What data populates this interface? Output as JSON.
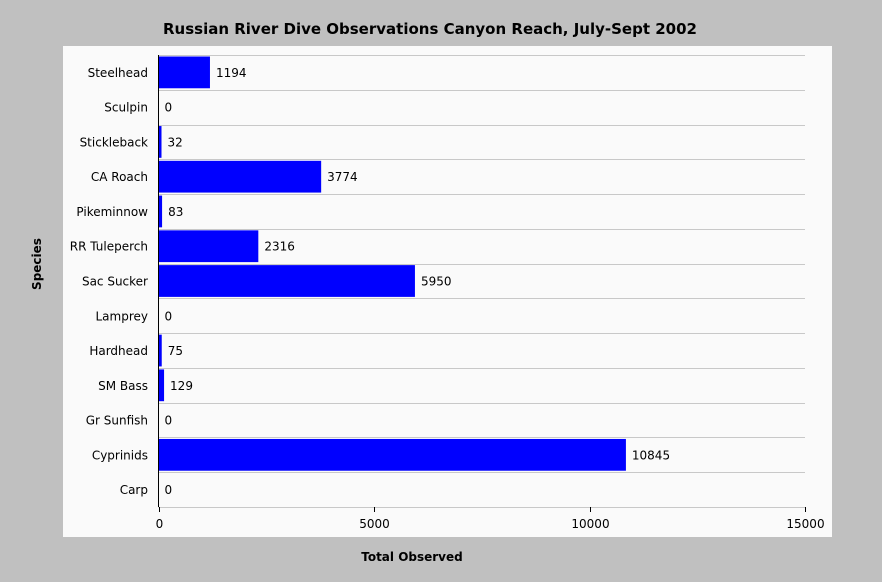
{
  "chart_data": {
    "type": "bar",
    "orientation": "horizontal",
    "title": "Russian River Dive Observations Canyon Reach, July-Sept 2002",
    "xlabel": "Total Observed",
    "ylabel": "Species",
    "categories": [
      "Steelhead",
      "Sculpin",
      "Stickleback",
      "CA Roach",
      "Pikeminnow",
      "RR Tuleperch",
      "Sac Sucker",
      "Lamprey",
      "Hardhead",
      "SM Bass",
      "Gr Sunfish",
      "Cyprinids",
      "Carp"
    ],
    "values": [
      1194,
      0,
      32,
      3774,
      83,
      2316,
      5950,
      0,
      75,
      129,
      0,
      10845,
      0
    ],
    "value_labels": [
      "1194",
      "0",
      "32",
      "3774",
      "83",
      "2316",
      "5950",
      "0",
      "75",
      "129",
      "0",
      "10845",
      "0"
    ],
    "xlim": [
      0,
      15000
    ],
    "xticks": [
      0,
      5000,
      10000,
      15000
    ],
    "xtick_labels": [
      "0",
      "5000",
      "10000",
      "15000"
    ],
    "bar_color": "#0000ff",
    "grid": true,
    "background_color": "#c0c0c0",
    "plot_background_color": "#fafafa"
  }
}
